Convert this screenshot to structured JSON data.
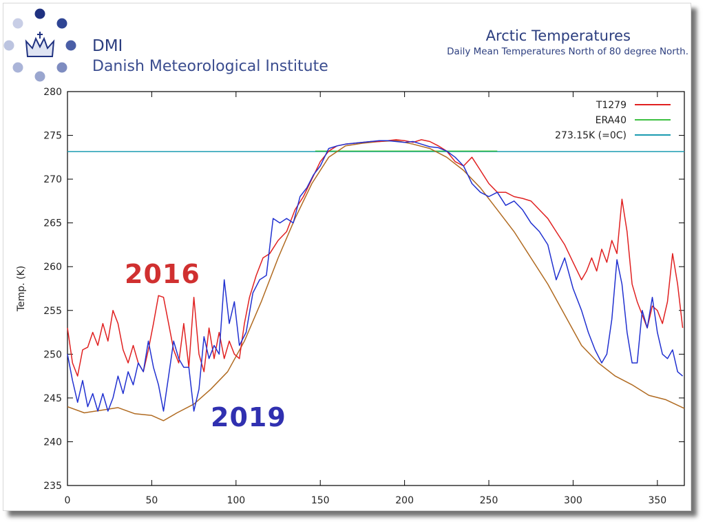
{
  "header": {
    "org_name": "DMI",
    "org_full": "Danish Meteorological Institute",
    "logo_icon": "crown-dots-logo-icon"
  },
  "chart_data": {
    "type": "line",
    "title": "Arctic Temperatures",
    "subtitle": "Daily Mean Temperatures North of 80 degree North.",
    "xlabel": "",
    "ylabel": "Temp. (K)",
    "xlim": [
      0,
      366
    ],
    "ylim": [
      235,
      280
    ],
    "x_ticks": [
      0,
      50,
      100,
      150,
      200,
      250,
      300,
      350
    ],
    "y_ticks": [
      235,
      240,
      245,
      250,
      255,
      260,
      265,
      270,
      275,
      280
    ],
    "grid": false,
    "legend": "top-right",
    "legend_entries": [
      "T1279",
      "ERA40",
      "273.15K (=0C)"
    ],
    "annotations": [
      {
        "text": "2016",
        "color": "#d03030"
      },
      {
        "text": "2019",
        "color": "#3030b0"
      }
    ],
    "series": [
      {
        "name": "273.15K (=0C)",
        "color": "#1a9bb0",
        "x": [
          0,
          366
        ],
        "y": [
          273.15,
          273.15
        ]
      },
      {
        "name": "ERA40",
        "color": "#3cc040",
        "x": [
          147,
          255
        ],
        "y": [
          273.2,
          273.2
        ]
      },
      {
        "name": "ERA40 climatology (brown)",
        "color": "#b06a20",
        "x": [
          0,
          10,
          20,
          30,
          40,
          50,
          57,
          65,
          75,
          85,
          95,
          105,
          115,
          125,
          135,
          145,
          155,
          165,
          175,
          185,
          195,
          205,
          215,
          225,
          235,
          245,
          255,
          265,
          275,
          285,
          295,
          305,
          315,
          325,
          335,
          345,
          355,
          366
        ],
        "y": [
          244,
          243.3,
          243.6,
          243.9,
          243.2,
          243.0,
          242.4,
          243.3,
          244.3,
          246.0,
          248.0,
          251.5,
          256.0,
          261.0,
          265.5,
          269.5,
          272.5,
          273.8,
          274.1,
          274.3,
          274.4,
          274.0,
          273.5,
          272.5,
          271.0,
          269.0,
          266.5,
          264.0,
          261.0,
          258.0,
          254.5,
          251.0,
          249.0,
          247.5,
          246.5,
          245.3,
          244.8,
          243.8
        ]
      },
      {
        "name": "2016 (T1279, red)",
        "color": "#e02020",
        "x": [
          0,
          3,
          6,
          9,
          12,
          15,
          18,
          21,
          24,
          27,
          30,
          33,
          36,
          39,
          42,
          45,
          48,
          51,
          54,
          57,
          60,
          63,
          66,
          69,
          72,
          75,
          78,
          81,
          84,
          87,
          90,
          93,
          96,
          99,
          102,
          105,
          108,
          112,
          116,
          120,
          125,
          130,
          135,
          140,
          145,
          150,
          155,
          160,
          165,
          170,
          175,
          180,
          185,
          190,
          195,
          200,
          205,
          210,
          215,
          220,
          225,
          230,
          235,
          240,
          245,
          250,
          255,
          260,
          265,
          270,
          275,
          280,
          285,
          290,
          295,
          300,
          305,
          308,
          311,
          314,
          317,
          320,
          323,
          326,
          329,
          332,
          335,
          338,
          341,
          344,
          347,
          350,
          353,
          356,
          359,
          362,
          365
        ],
        "y": [
          253,
          249,
          247.5,
          250.5,
          250.8,
          252.5,
          251,
          253.5,
          251.5,
          255,
          253.5,
          250.5,
          249,
          251,
          249,
          248,
          250.5,
          253.5,
          256.7,
          256.5,
          253.5,
          250.5,
          249,
          253.5,
          248.5,
          256.5,
          250,
          248,
          253,
          249.5,
          252.5,
          249.5,
          251.5,
          250,
          249.5,
          253.5,
          256.5,
          259,
          261,
          261.5,
          263,
          264,
          266.5,
          268,
          270,
          272,
          273.2,
          273.8,
          274,
          274.1,
          274.2,
          274.3,
          274.3,
          274.4,
          274.5,
          274.4,
          274.2,
          274.5,
          274.3,
          273.8,
          273.2,
          272,
          271.5,
          272.5,
          271,
          269.5,
          268.5,
          268.5,
          268,
          267.8,
          267.5,
          266.5,
          265.5,
          264,
          262.5,
          260.5,
          258.5,
          259.5,
          261,
          259.5,
          262,
          260.5,
          263,
          261.5,
          267.7,
          264,
          258,
          256,
          254.5,
          253,
          255.5,
          255,
          253.5,
          256,
          261.5,
          258,
          253
        ]
      },
      {
        "name": "2019 (T1279, blue)",
        "color": "#2030d0",
        "x": [
          0,
          3,
          6,
          9,
          12,
          15,
          18,
          21,
          24,
          27,
          30,
          33,
          36,
          39,
          42,
          45,
          48,
          51,
          54,
          57,
          60,
          63,
          66,
          69,
          72,
          75,
          78,
          81,
          84,
          87,
          90,
          93,
          96,
          99,
          102,
          106,
          110,
          114,
          118,
          122,
          126,
          130,
          134,
          138,
          142,
          146,
          150,
          155,
          160,
          165,
          170,
          175,
          180,
          185,
          190,
          195,
          200,
          205,
          210,
          215,
          220,
          225,
          230,
          235,
          240,
          245,
          250,
          255,
          260,
          265,
          270,
          275,
          280,
          285,
          290,
          295,
          300,
          305,
          309,
          313,
          317,
          320,
          323,
          326,
          329,
          332,
          335,
          338,
          341,
          344,
          347,
          350,
          353,
          356,
          359,
          362,
          365
        ],
        "y": [
          250,
          247,
          244.5,
          247,
          244,
          245.5,
          243.5,
          245.5,
          243.5,
          245,
          247.5,
          245.5,
          248,
          246.5,
          249,
          248,
          251.5,
          248.5,
          246.5,
          243.5,
          247.5,
          251.5,
          249.5,
          248.5,
          248.5,
          243.5,
          246,
          252,
          249.5,
          251,
          250,
          258.5,
          253.5,
          256,
          251,
          252.5,
          257,
          258.5,
          259,
          265.5,
          265,
          265.5,
          265,
          268,
          269,
          270.5,
          271.5,
          273.5,
          273.8,
          274,
          274.1,
          274.2,
          274.3,
          274.4,
          274.4,
          274.3,
          274.2,
          274.3,
          274,
          273.7,
          273.6,
          273.2,
          272.5,
          271.5,
          269.5,
          268.5,
          268,
          268.5,
          267,
          267.5,
          266.5,
          265,
          264,
          262.5,
          258.5,
          261,
          257.5,
          255,
          252.5,
          250.5,
          249,
          250,
          254,
          260.8,
          258,
          252.5,
          249,
          249,
          255,
          253,
          256.5,
          252.5,
          250,
          249.5,
          250.5,
          248,
          247.5
        ]
      }
    ]
  }
}
